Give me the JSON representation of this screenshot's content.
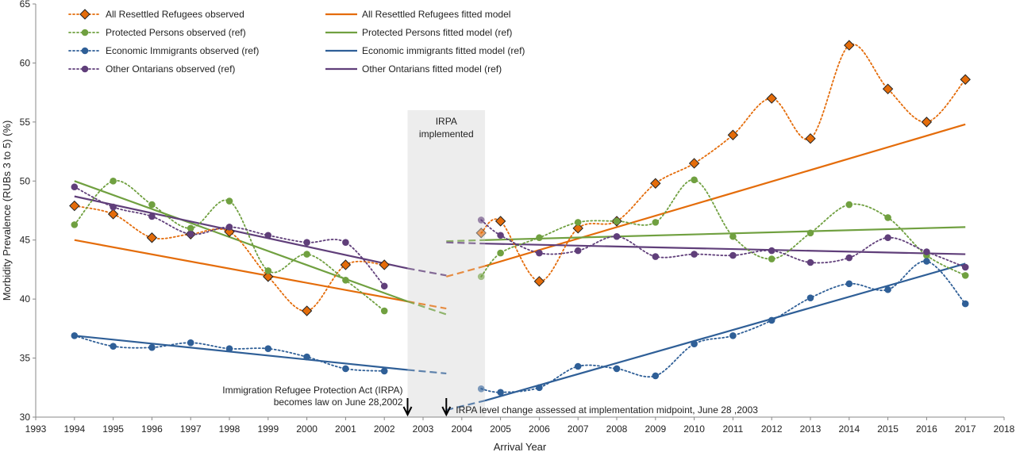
{
  "chart_data": {
    "type": "line",
    "title": "",
    "xlabel": "Arrival Year",
    "ylabel": "Morbidity Prevalence (RUBs 3 to 5) (%)",
    "xlim": [
      1993,
      2018
    ],
    "ylim": [
      30,
      65
    ],
    "x_ticks": [
      1993,
      1994,
      1995,
      1996,
      1997,
      1998,
      1999,
      2000,
      2001,
      2002,
      2003,
      2004,
      2005,
      2006,
      2007,
      2008,
      2009,
      2010,
      2011,
      2012,
      2013,
      2014,
      2015,
      2016,
      2017,
      2018
    ],
    "y_ticks": [
      30,
      35,
      40,
      45,
      50,
      55,
      60,
      65
    ],
    "legend_position": "top-left",
    "shaded_region": {
      "x_start": 2002.6,
      "x_end": 2004.6,
      "label_lines": [
        "IRPA",
        "implemented"
      ]
    },
    "annotations": [
      {
        "lines": [
          "Immigration Refugee Protection Act (IRPA)",
          "becomes law on June 28,2002"
        ],
        "arrow_x": 2002.6
      },
      {
        "lines": [
          "IRPA level change assessed at implementation midpoint, June 28 ,2003"
        ],
        "arrow_x": 2003.6
      }
    ],
    "series": [
      {
        "name": "All Resettled Refugees observed",
        "kind": "observed",
        "color": "#E46C0A",
        "marker": "diamond",
        "x": [
          1994,
          1995,
          1996,
          1997,
          1998,
          1999,
          2000,
          2001,
          2002,
          2004.5,
          2005,
          2006,
          2007,
          2008,
          2009,
          2010,
          2011,
          2012,
          2013,
          2014,
          2015,
          2016,
          2017
        ],
        "values": [
          47.9,
          47.2,
          45.2,
          45.5,
          45.7,
          41.9,
          39.0,
          42.9,
          42.9,
          45.6,
          46.6,
          41.5,
          46.0,
          46.6,
          49.8,
          51.5,
          53.9,
          57.0,
          53.6,
          61.5,
          57.8,
          55.0,
          58.6
        ]
      },
      {
        "name": "Protected Persons observed (ref)",
        "kind": "observed",
        "color": "#70A040",
        "marker": "circle",
        "x": [
          1994,
          1995,
          1996,
          1997,
          1998,
          1999,
          2000,
          2001,
          2002,
          2004.5,
          2005,
          2006,
          2007,
          2008,
          2009,
          2010,
          2011,
          2012,
          2013,
          2014,
          2015,
          2016,
          2017
        ],
        "values": [
          46.3,
          50.0,
          48.0,
          46.0,
          48.3,
          42.4,
          43.8,
          41.6,
          39.0,
          41.9,
          43.9,
          45.2,
          46.5,
          46.6,
          46.5,
          50.1,
          45.3,
          43.4,
          45.6,
          48.0,
          46.9,
          43.7,
          42.0
        ]
      },
      {
        "name": "Economic Immigrants observed (ref)",
        "kind": "observed",
        "color": "#2F5F97",
        "marker": "circle",
        "x": [
          1994,
          1995,
          1996,
          1997,
          1998,
          1999,
          2000,
          2001,
          2002,
          2004.5,
          2005,
          2006,
          2007,
          2008,
          2009,
          2010,
          2011,
          2012,
          2013,
          2014,
          2015,
          2016,
          2017
        ],
        "values": [
          36.9,
          36.0,
          35.9,
          36.3,
          35.8,
          35.8,
          35.1,
          34.1,
          33.9,
          32.4,
          32.1,
          32.5,
          34.3,
          34.1,
          33.5,
          36.2,
          36.9,
          38.2,
          40.1,
          41.3,
          40.8,
          43.2,
          39.6
        ]
      },
      {
        "name": "Other Ontarians observed (ref)",
        "kind": "observed",
        "color": "#603F7A",
        "marker": "circle",
        "x": [
          1994,
          1995,
          1996,
          1997,
          1998,
          1999,
          2000,
          2001,
          2002,
          2004.5,
          2005,
          2006,
          2007,
          2008,
          2009,
          2010,
          2011,
          2012,
          2013,
          2014,
          2015,
          2016,
          2017
        ],
        "values": [
          49.5,
          47.8,
          47.0,
          45.5,
          46.1,
          45.4,
          44.8,
          44.8,
          41.1,
          46.7,
          45.4,
          43.9,
          44.1,
          45.3,
          43.6,
          43.8,
          43.7,
          44.1,
          43.1,
          43.5,
          45.2,
          44.0,
          42.7
        ]
      },
      {
        "name": "All Resettled Refugees fitted model",
        "kind": "fitted",
        "color": "#E46C0A",
        "pre": [
          [
            1994,
            45.0
          ],
          [
            2002.6,
            39.8
          ]
        ],
        "pre_ext": [
          [
            2002.6,
            39.8
          ],
          [
            2003.6,
            39.2
          ]
        ],
        "post_ext": [
          [
            2003.6,
            41.9
          ],
          [
            2004.6,
            42.8
          ]
        ],
        "post": [
          [
            2004.6,
            42.8
          ],
          [
            2017,
            54.8
          ]
        ]
      },
      {
        "name": "Protected Persons fitted model (ref)",
        "kind": "fitted",
        "color": "#70A040",
        "pre": [
          [
            1994,
            50.0
          ],
          [
            2002.6,
            39.8
          ]
        ],
        "pre_ext": [
          [
            2002.6,
            39.8
          ],
          [
            2003.6,
            38.7
          ]
        ],
        "post_ext": [
          [
            2003.6,
            44.9
          ],
          [
            2004.6,
            45.0
          ]
        ],
        "post": [
          [
            2004.6,
            45.0
          ],
          [
            2017,
            46.1
          ]
        ]
      },
      {
        "name": "Economic immigrants fitted model (ref)",
        "kind": "fitted",
        "color": "#2F5F97",
        "pre": [
          [
            1994,
            36.9
          ],
          [
            2002.6,
            34.0
          ]
        ],
        "pre_ext": [
          [
            2002.6,
            34.0
          ],
          [
            2003.6,
            33.7
          ]
        ],
        "post_ext": [
          [
            2003.6,
            30.6
          ],
          [
            2004.6,
            31.4
          ]
        ],
        "post": [
          [
            2004.6,
            31.4
          ],
          [
            2017,
            43.0
          ]
        ]
      },
      {
        "name": "Other Ontarians fitted model (ref)",
        "kind": "fitted",
        "color": "#603F7A",
        "pre": [
          [
            1994,
            48.7
          ],
          [
            2002.6,
            42.6
          ]
        ],
        "pre_ext": [
          [
            2002.6,
            42.6
          ],
          [
            2003.6,
            42.0
          ]
        ],
        "post_ext": [
          [
            2003.6,
            44.8
          ],
          [
            2004.6,
            44.7
          ]
        ],
        "post": [
          [
            2004.6,
            44.7
          ],
          [
            2017,
            43.8
          ]
        ]
      }
    ],
    "legend_order": [
      [
        "All Resettled Refugees observed",
        "All Resettled Refugees fitted model"
      ],
      [
        "Protected Persons observed (ref)",
        "Protected Persons fitted model (ref)"
      ],
      [
        "Economic Immigrants observed (ref)",
        "Economic immigrants fitted model (ref)"
      ],
      [
        "Other Ontarians observed (ref)",
        "Other Ontarians fitted model (ref)"
      ]
    ]
  }
}
